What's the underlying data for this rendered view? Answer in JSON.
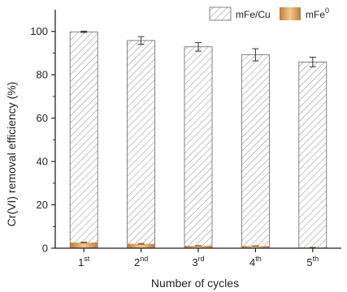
{
  "chart_data": {
    "type": "bar",
    "categories": [
      {
        "base": "1",
        "sup": "st"
      },
      {
        "base": "2",
        "sup": "nd"
      },
      {
        "base": "3",
        "sup": "rd"
      },
      {
        "base": "4",
        "sup": "th"
      },
      {
        "base": "5",
        "sup": "th"
      }
    ],
    "series": [
      {
        "name": "mFe/Cu",
        "values": [
          99.8,
          95.8,
          92.9,
          89.2,
          85.9
        ],
        "errors": [
          0.3,
          1.8,
          2.0,
          2.8,
          2.2
        ],
        "color": "#8a8a8a",
        "pattern": "diagonal-hatch"
      },
      {
        "name": "mFe",
        "name_sup": "0",
        "values": [
          2.6,
          2.0,
          1.1,
          1.0,
          0.3
        ],
        "errors": [
          0.2,
          0.2,
          0.1,
          0.1,
          0.1
        ],
        "color": "#d9a062",
        "pattern": "solid-gradient"
      }
    ],
    "xlabel": "Number of cycles",
    "ylabel": "Cr(VI) removal efficiency (%)",
    "ylim": [
      0,
      110
    ],
    "yticks": [
      "0",
      "20",
      "40",
      "60",
      "80",
      "100"
    ],
    "legend_position": "top-right",
    "grid": false
  }
}
